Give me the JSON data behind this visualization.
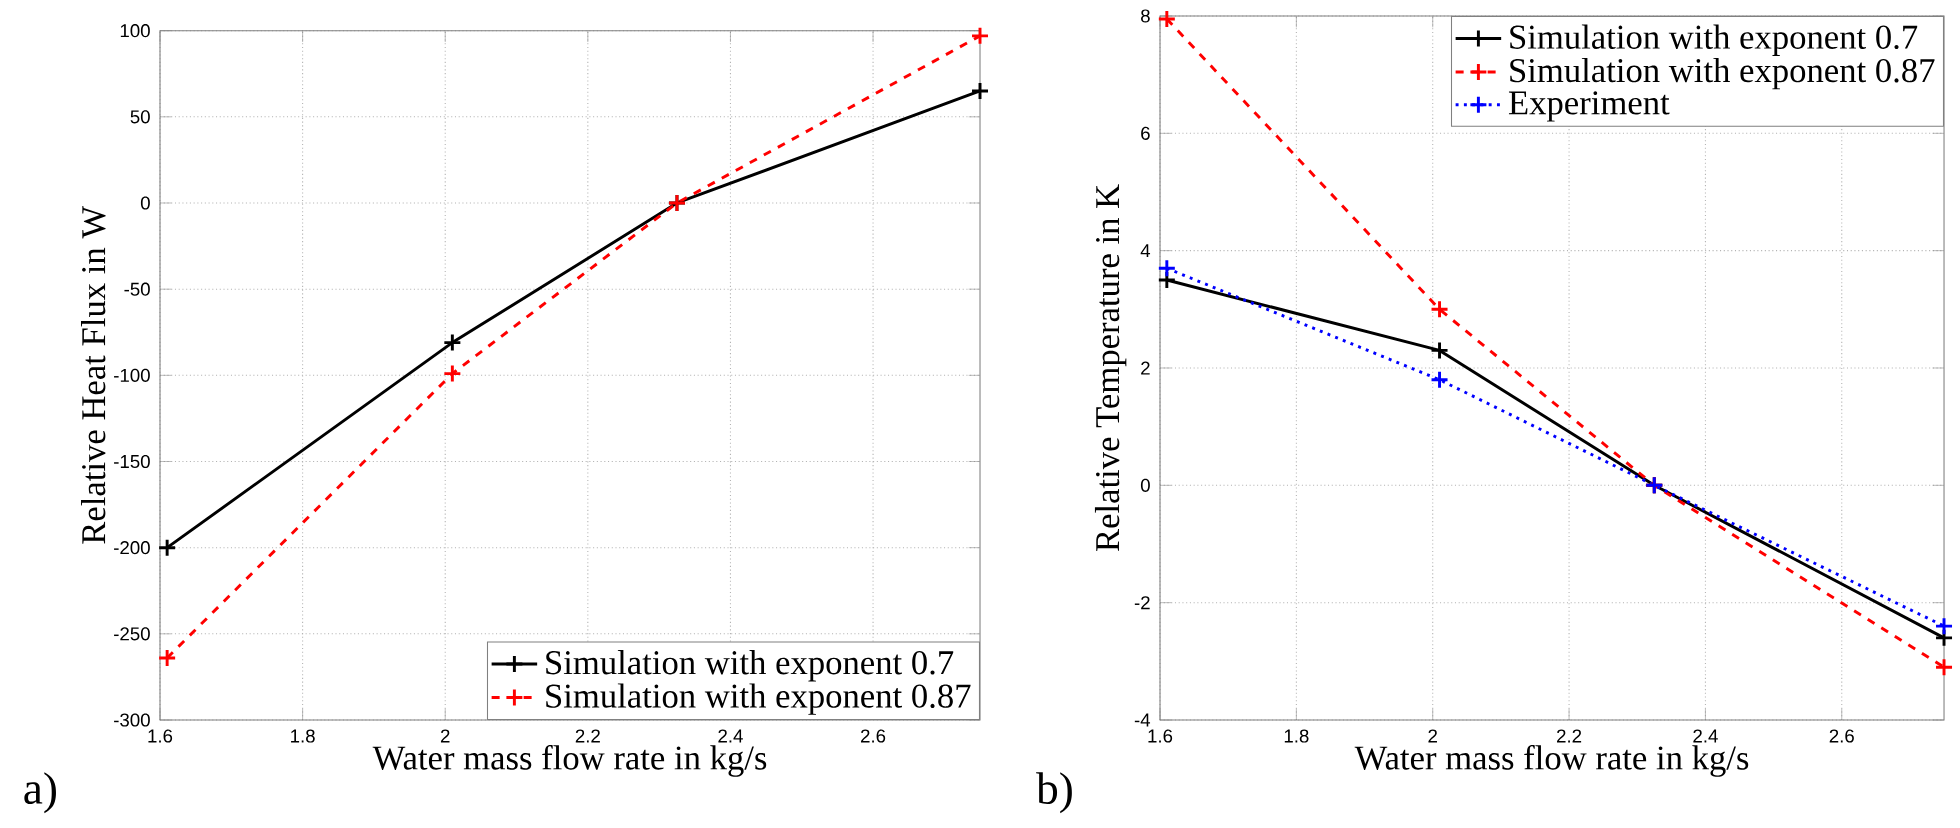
{
  "chart_data": [
    {
      "type": "line",
      "xlabel": "Water mass flow rate in kg/s",
      "ylabel": "Relative Heat Flux in W",
      "annotations": [
        "a)"
      ],
      "x": [
        1.61,
        2.01,
        2.325,
        2.75
      ],
      "series": [
        {
          "name": "Simulation with exponent 0.7",
          "color": "#000000",
          "line_style": "solid",
          "values": [
            -200,
            -81,
            0,
            65
          ]
        },
        {
          "name": "Simulation with exponent 0.87",
          "color": "#ff0000",
          "line_style": "dashed",
          "values": [
            -264,
            -99,
            0,
            97
          ]
        }
      ],
      "xlim": [
        1.6,
        2.75
      ],
      "ylim": [
        -300,
        100
      ],
      "xticks": [
        1.6,
        1.8,
        2,
        2.2,
        2.4,
        2.6
      ],
      "yticks": [
        -300,
        -250,
        -200,
        -150,
        -100,
        -50,
        0,
        50,
        100
      ],
      "grid": true,
      "legend": "bottom right",
      "marker": "cross"
    },
    {
      "type": "line",
      "xlabel": "Water mass flow rate in kg/s",
      "ylabel": "Relative Temperature in K",
      "annotations": [
        "b)"
      ],
      "x": [
        1.61,
        2.01,
        2.325,
        2.75
      ],
      "series": [
        {
          "name": "Simulation with exponent 0.7",
          "color": "#000000",
          "line_style": "solid",
          "values": [
            3.5,
            2.3,
            0,
            -2.6
          ]
        },
        {
          "name": "Simulation with exponent 0.87",
          "color": "#ff0000",
          "line_style": "dashed",
          "values": [
            7.95,
            3.0,
            0,
            -3.1
          ]
        },
        {
          "name": "Experiment",
          "color": "#0000ff",
          "line_style": "dotted",
          "values": [
            3.7,
            1.8,
            0,
            -2.4
          ]
        }
      ],
      "xlim": [
        1.6,
        2.75
      ],
      "ylim": [
        -4,
        8
      ],
      "xticks": [
        1.6,
        1.8,
        2,
        2.2,
        2.4,
        2.6
      ],
      "yticks": [
        -4,
        -2,
        0,
        2,
        4,
        6,
        8
      ],
      "grid": true,
      "legend": "top right",
      "marker": "cross"
    }
  ]
}
